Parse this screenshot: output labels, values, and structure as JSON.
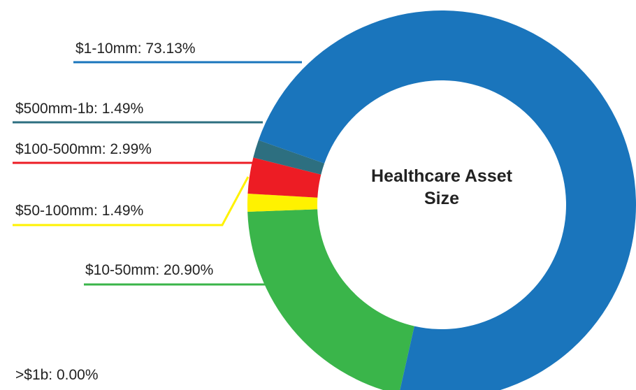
{
  "chart_data": {
    "type": "donut",
    "title": "Healthcare Asset Size",
    "values": [
      73.13,
      1.49,
      2.99,
      1.49,
      20.9,
      0.0
    ],
    "value_labels": [
      "$1-10mm: 73.13%",
      "$500mm-1b: 1.49%",
      "$100-500mm: 2.99%",
      "$50-100mm: 1.49%",
      "$10-50mm: 20.90%",
      ">$1b: 0.00%"
    ],
    "colors": [
      "#1a75bc",
      "#2d6f80",
      "#ed1c24",
      "#fff200",
      "#3ab54a",
      "#888888"
    ]
  }
}
